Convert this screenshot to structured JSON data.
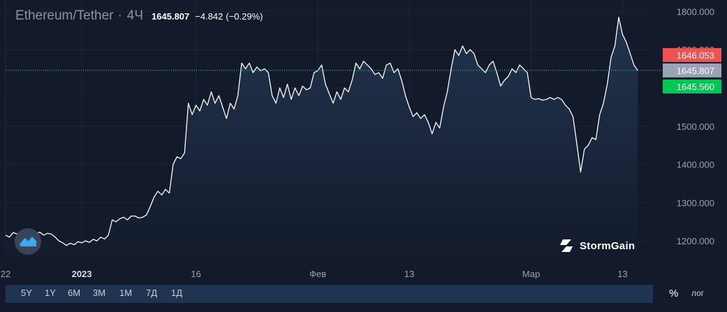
{
  "header": {
    "symbol": "Ethereum/Tether",
    "separator": "·",
    "timeframe": "4Ч",
    "last_price": "1645.807",
    "change": "−4.842",
    "change_percent": "(−0.29%)"
  },
  "price_labels": {
    "ask": "1646.053",
    "last": "1645.807",
    "bid": "1645.560"
  },
  "brand": {
    "name": "StormGain",
    "icon": "stormgain-bolt-icon"
  },
  "watermark_icon": "chart-logo-icon",
  "range_buttons": [
    "5Y",
    "1Y",
    "6M",
    "3M",
    "1M",
    "7Д",
    "1Д"
  ],
  "scale_buttons": {
    "percent": "%",
    "log": "лог"
  },
  "colors": {
    "background": "#131a2b",
    "line": "#ffffff",
    "area": "#1b2a40",
    "ask": "#ef5350",
    "last": "#9aa3b5",
    "bid": "#00c853",
    "price_line": "#3ddc84",
    "grid": "#1e2638"
  },
  "chart_data": {
    "type": "area",
    "ylim": [
      1140,
      1830
    ],
    "y_ticks": [
      1200,
      1300,
      1400,
      1500,
      1600,
      1700,
      1800
    ],
    "y_tick_labels": [
      "1200.000",
      "1300.000",
      "1400.000",
      "1500.000",
      "1600.000",
      "1700.000",
      "1800.000"
    ],
    "x_ticks": [
      {
        "x": 0,
        "label": "22",
        "bold": false
      },
      {
        "x": 10,
        "label": "2023",
        "bold": true
      },
      {
        "x": 25,
        "label": "16",
        "bold": false
      },
      {
        "x": 41,
        "label": "Фев",
        "bold": false
      },
      {
        "x": 53,
        "label": "13",
        "bold": false
      },
      {
        "x": 69,
        "label": "Мар",
        "bold": false
      },
      {
        "x": 81,
        "label": "13",
        "bold": false
      }
    ],
    "grid": true,
    "series": [
      {
        "values": [
          [
            0,
            1215
          ],
          [
            0.5,
            1210
          ],
          [
            1,
            1222
          ],
          [
            1.5,
            1218
          ],
          [
            2,
            1225
          ],
          [
            2.5,
            1220
          ],
          [
            3,
            1215
          ],
          [
            3.5,
            1222
          ],
          [
            4,
            1218
          ],
          [
            4.5,
            1223
          ],
          [
            5,
            1215
          ],
          [
            5.5,
            1220
          ],
          [
            6,
            1218
          ],
          [
            6.5,
            1210
          ],
          [
            7,
            1200
          ],
          [
            7.5,
            1195
          ],
          [
            8,
            1188
          ],
          [
            8.5,
            1194
          ],
          [
            9,
            1190
          ],
          [
            9.5,
            1198
          ],
          [
            10,
            1195
          ],
          [
            10.5,
            1200
          ],
          [
            11,
            1196
          ],
          [
            11.5,
            1204
          ],
          [
            12,
            1200
          ],
          [
            12.5,
            1210
          ],
          [
            13,
            1205
          ],
          [
            13.5,
            1215
          ],
          [
            14,
            1255
          ],
          [
            14.5,
            1250
          ],
          [
            15,
            1258
          ],
          [
            15.5,
            1262
          ],
          [
            16,
            1255
          ],
          [
            16.5,
            1265
          ],
          [
            17,
            1265
          ],
          [
            17.5,
            1260
          ],
          [
            18,
            1262
          ],
          [
            18.5,
            1268
          ],
          [
            19,
            1290
          ],
          [
            19.5,
            1315
          ],
          [
            20,
            1330
          ],
          [
            20.5,
            1320
          ],
          [
            21,
            1335
          ],
          [
            21.5,
            1325
          ],
          [
            22,
            1400
          ],
          [
            22.5,
            1420
          ],
          [
            23,
            1415
          ],
          [
            23.5,
            1430
          ],
          [
            24,
            1560
          ],
          [
            24.5,
            1530
          ],
          [
            25,
            1555
          ],
          [
            25.5,
            1540
          ],
          [
            26,
            1570
          ],
          [
            26.5,
            1555
          ],
          [
            27,
            1590
          ],
          [
            27.5,
            1560
          ],
          [
            28,
            1580
          ],
          [
            28.5,
            1550
          ],
          [
            29,
            1520
          ],
          [
            29.5,
            1560
          ],
          [
            30,
            1545
          ],
          [
            30.5,
            1580
          ],
          [
            31,
            1665
          ],
          [
            31.5,
            1650
          ],
          [
            32,
            1665
          ],
          [
            32.5,
            1640
          ],
          [
            33,
            1655
          ],
          [
            33.5,
            1645
          ],
          [
            34,
            1650
          ],
          [
            34.5,
            1640
          ],
          [
            35,
            1580
          ],
          [
            35.5,
            1560
          ],
          [
            36,
            1600
          ],
          [
            36.5,
            1575
          ],
          [
            37,
            1610
          ],
          [
            37.5,
            1570
          ],
          [
            38,
            1600
          ],
          [
            38.5,
            1580
          ],
          [
            39,
            1605
          ],
          [
            39.5,
            1595
          ],
          [
            40,
            1600
          ],
          [
            40.5,
            1640
          ],
          [
            41,
            1645
          ],
          [
            41.5,
            1660
          ],
          [
            42,
            1610
          ],
          [
            42.5,
            1585
          ],
          [
            43,
            1560
          ],
          [
            43.5,
            1590
          ],
          [
            44,
            1570
          ],
          [
            44.5,
            1600
          ],
          [
            45,
            1590
          ],
          [
            45.5,
            1620
          ],
          [
            46,
            1665
          ],
          [
            46.5,
            1650
          ],
          [
            47,
            1670
          ],
          [
            47.5,
            1660
          ],
          [
            48,
            1650
          ],
          [
            48.5,
            1635
          ],
          [
            49,
            1640
          ],
          [
            49.5,
            1625
          ],
          [
            50,
            1660
          ],
          [
            50.5,
            1665
          ],
          [
            51,
            1640
          ],
          [
            51.5,
            1650
          ],
          [
            52,
            1620
          ],
          [
            52.5,
            1580
          ],
          [
            53,
            1550
          ],
          [
            53.5,
            1525
          ],
          [
            54,
            1535
          ],
          [
            54.5,
            1520
          ],
          [
            55,
            1530
          ],
          [
            55.5,
            1510
          ],
          [
            56,
            1480
          ],
          [
            56.5,
            1510
          ],
          [
            57,
            1495
          ],
          [
            57.5,
            1550
          ],
          [
            58,
            1590
          ],
          [
            58.5,
            1650
          ],
          [
            59,
            1700
          ],
          [
            59.5,
            1685
          ],
          [
            60,
            1710
          ],
          [
            60.5,
            1690
          ],
          [
            61,
            1700
          ],
          [
            61.5,
            1690
          ],
          [
            62,
            1660
          ],
          [
            62.5,
            1650
          ],
          [
            63,
            1640
          ],
          [
            63.5,
            1660
          ],
          [
            64,
            1670
          ],
          [
            64.5,
            1640
          ],
          [
            65,
            1605
          ],
          [
            65.5,
            1620
          ],
          [
            66,
            1630
          ],
          [
            66.5,
            1650
          ],
          [
            67,
            1640
          ],
          [
            67.5,
            1660
          ],
          [
            68,
            1650
          ],
          [
            68.5,
            1640
          ],
          [
            69,
            1575
          ],
          [
            69.5,
            1570
          ],
          [
            70,
            1572
          ],
          [
            70.5,
            1568
          ],
          [
            71,
            1570
          ],
          [
            71.5,
            1575
          ],
          [
            72,
            1570
          ],
          [
            72.5,
            1575
          ],
          [
            73,
            1570
          ],
          [
            73.5,
            1555
          ],
          [
            74,
            1545
          ],
          [
            74.5,
            1525
          ],
          [
            75,
            1455
          ],
          [
            75.5,
            1380
          ],
          [
            76,
            1440
          ],
          [
            76.5,
            1450
          ],
          [
            77,
            1470
          ],
          [
            77.5,
            1465
          ],
          [
            78,
            1530
          ],
          [
            78.5,
            1560
          ],
          [
            79,
            1610
          ],
          [
            79.5,
            1680
          ],
          [
            80,
            1710
          ],
          [
            80.5,
            1785
          ],
          [
            81,
            1740
          ],
          [
            81.5,
            1720
          ],
          [
            82,
            1690
          ],
          [
            82.5,
            1660
          ],
          [
            83,
            1645.807
          ]
        ]
      }
    ]
  }
}
